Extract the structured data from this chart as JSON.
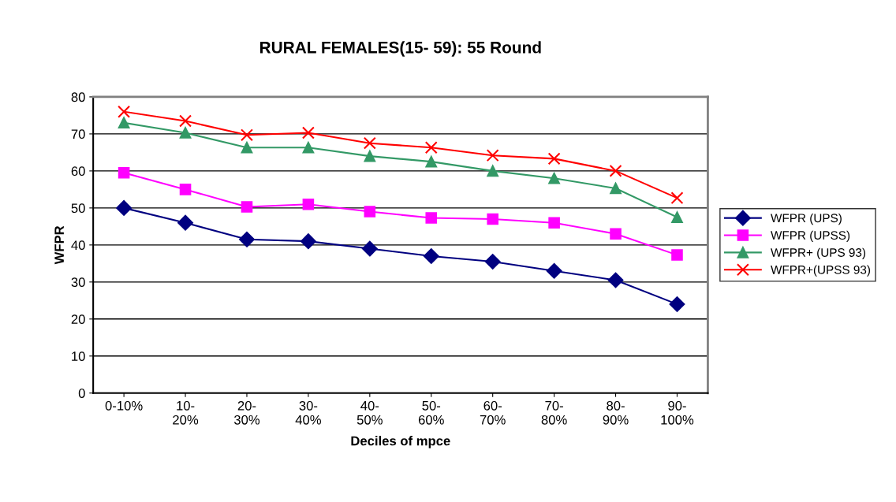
{
  "chart_data": {
    "type": "line",
    "title": "RURAL FEMALES(15- 59): 55 Round",
    "xlabel": "Deciles of mpce",
    "ylabel": "WFPR",
    "categories": [
      "0-10%",
      "10-\n20%",
      "20-\n30%",
      "30-\n40%",
      "40-\n50%",
      "50-\n60%",
      "60-\n70%",
      "70-\n80%",
      "80-\n90%",
      "90-\n100%"
    ],
    "series": [
      {
        "name": "WFPR (UPS)",
        "color": "#000080",
        "marker": "diamond",
        "values": [
          50,
          46,
          41.5,
          41,
          39,
          37,
          35.5,
          33,
          30.5,
          24
        ]
      },
      {
        "name": "WFPR (UPSS)",
        "color": "#ff00ff",
        "marker": "square",
        "values": [
          59.5,
          55,
          50.3,
          51,
          49,
          47.3,
          47,
          46,
          43,
          37.3
        ]
      },
      {
        "name": "WFPR+ (UPS 93)",
        "color": "#339966",
        "marker": "triangle",
        "values": [
          73,
          70.3,
          66.3,
          66.3,
          64,
          62.5,
          60,
          58,
          55.3,
          47.5
        ]
      },
      {
        "name": "WFPR+(UPSS 93)",
        "color": "#ff0000",
        "marker": "cross",
        "values": [
          76,
          73.5,
          69.7,
          70.3,
          67.5,
          66.3,
          64.2,
          63.3,
          60,
          52.7
        ]
      }
    ],
    "ylim": [
      0,
      80
    ],
    "yticks": [
      0,
      10,
      20,
      30,
      40,
      50,
      60,
      70,
      80
    ],
    "grid": "y",
    "legend": "right",
    "line_style": "solid"
  }
}
